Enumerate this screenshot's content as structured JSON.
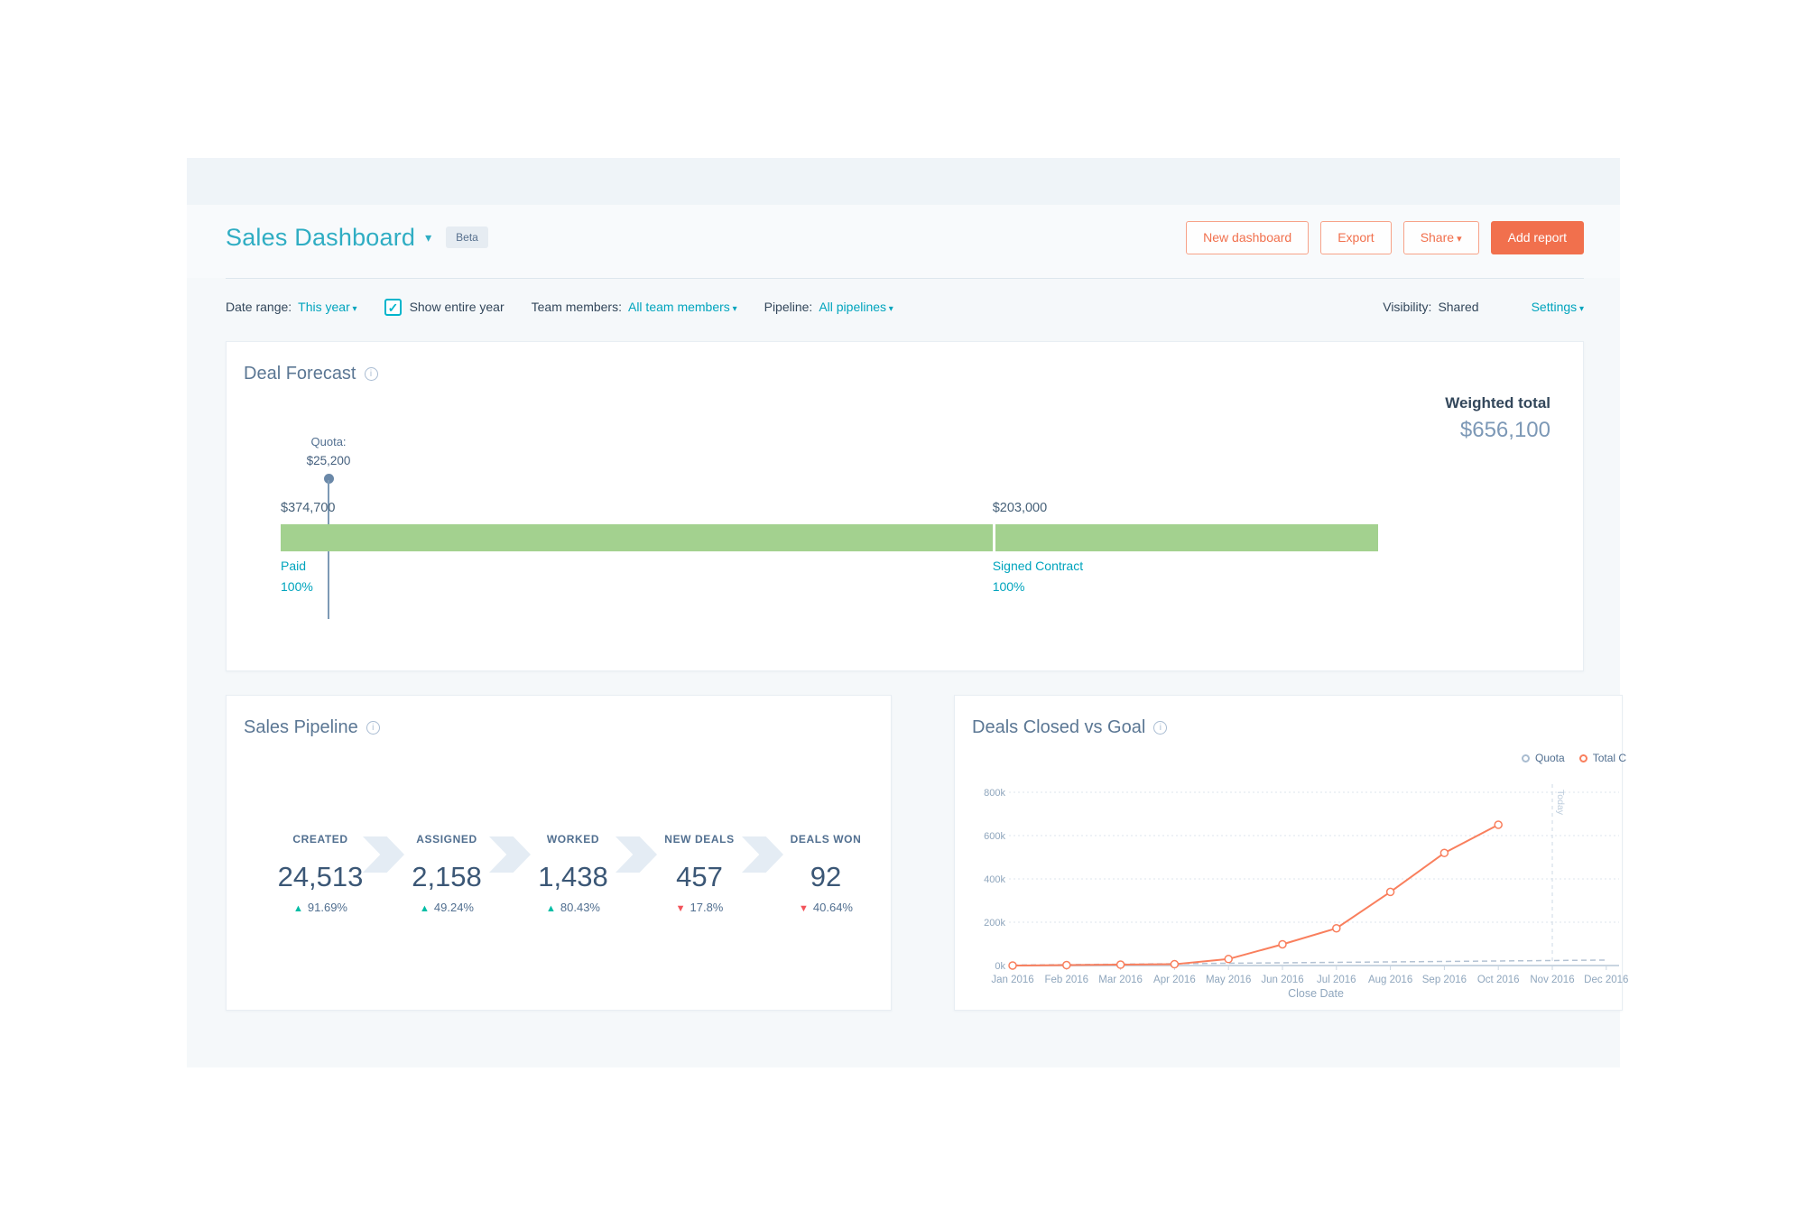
{
  "colors": {
    "accent_teal": "#00a4bd",
    "title_teal": "#2fadc3",
    "orange": "#f1704d",
    "bar_green": "#a3d18f",
    "dark_text": "#33475b",
    "slate": "#516f90",
    "light_slate": "#7c98b6",
    "up_green": "#00bda5",
    "down_red": "#f2545b"
  },
  "header": {
    "title": "Sales Dashboard",
    "beta_label": "Beta",
    "buttons": {
      "new_dashboard": "New dashboard",
      "export": "Export",
      "share": "Share",
      "add_report": "Add report"
    }
  },
  "filters": {
    "date_range_label": "Date range:",
    "date_range_value": "This year",
    "show_entire_year_label": "Show entire year",
    "show_entire_year_checked": true,
    "team_members_label": "Team members:",
    "team_members_value": "All team members",
    "pipeline_label": "Pipeline:",
    "pipeline_value": "All pipelines",
    "visibility_label": "Visibility:",
    "visibility_value": "Shared",
    "settings_label": "Settings"
  },
  "deal_forecast": {
    "title": "Deal Forecast",
    "weighted_total_label": "Weighted total",
    "weighted_total_value": "$656,100",
    "quota": {
      "label": "Quota:",
      "amount": "$25,200",
      "value": 25200
    },
    "segments": [
      {
        "name": "Paid",
        "amount": "$374,700",
        "percent": "100%",
        "value": 374700
      },
      {
        "name": "Signed Contract",
        "amount": "$203,000",
        "percent": "100%",
        "value": 203000
      }
    ]
  },
  "sales_pipeline": {
    "title": "Sales Pipeline",
    "stages": [
      {
        "label": "CREATED",
        "value": "24,513",
        "change": "91.69%",
        "direction": "up"
      },
      {
        "label": "ASSIGNED",
        "value": "2,158",
        "change": "49.24%",
        "direction": "up"
      },
      {
        "label": "WORKED",
        "value": "1,438",
        "change": "80.43%",
        "direction": "up"
      },
      {
        "label": "NEW DEALS",
        "value": "457",
        "change": "17.8%",
        "direction": "down"
      },
      {
        "label": "DEALS WON",
        "value": "92",
        "change": "40.64%",
        "direction": "down"
      }
    ]
  },
  "deals_closed": {
    "title": "Deals Closed vs Goal",
    "legend": [
      {
        "name": "Quota",
        "color": "#a9bcd0"
      },
      {
        "name": "Total C",
        "color": "#f97f5d"
      }
    ],
    "chart_data": {
      "type": "line",
      "title": "Deals Closed vs Goal",
      "xlabel": "Close Date",
      "ylabel": "",
      "ylim": [
        0,
        830000
      ],
      "grid": true,
      "legend_position": "top-right",
      "x_ticks": [
        "Jan 2016",
        "Feb 2016",
        "Mar 2016",
        "Apr 2016",
        "May 2016",
        "Jun 2016",
        "Jul 2016",
        "Aug 2016",
        "Sep 2016",
        "Oct 2016",
        "Nov 2016",
        "Dec 2016"
      ],
      "y_ticks": [
        "0k",
        "200k",
        "400k",
        "600k",
        "800k"
      ],
      "y_tick_values": [
        0,
        200000,
        400000,
        600000,
        800000
      ],
      "today_label": "Today",
      "today_index": 10,
      "series": [
        {
          "name": "Quota",
          "style": "dashed",
          "color": "#b3c2d3",
          "values": [
            2100,
            4200,
            6300,
            8400,
            10500,
            12600,
            14700,
            16800,
            18900,
            21000,
            23100,
            25200
          ]
        },
        {
          "name": "Total C",
          "style": "solid-markers",
          "color": "#f97f5d",
          "values": [
            0,
            2000,
            4000,
            6000,
            30000,
            98000,
            172000,
            340000,
            520000,
            650000,
            null,
            null
          ]
        }
      ]
    }
  }
}
